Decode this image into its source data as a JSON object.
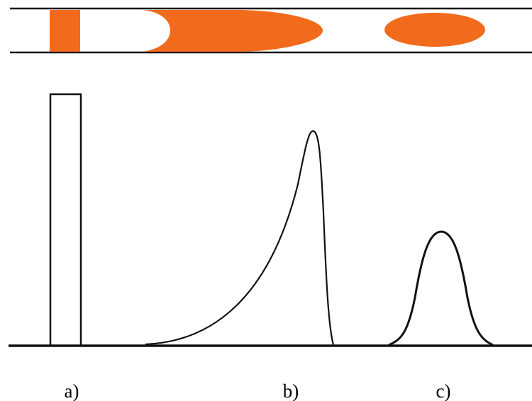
{
  "labels": [
    "a)",
    "b)",
    "c)"
  ]
}
